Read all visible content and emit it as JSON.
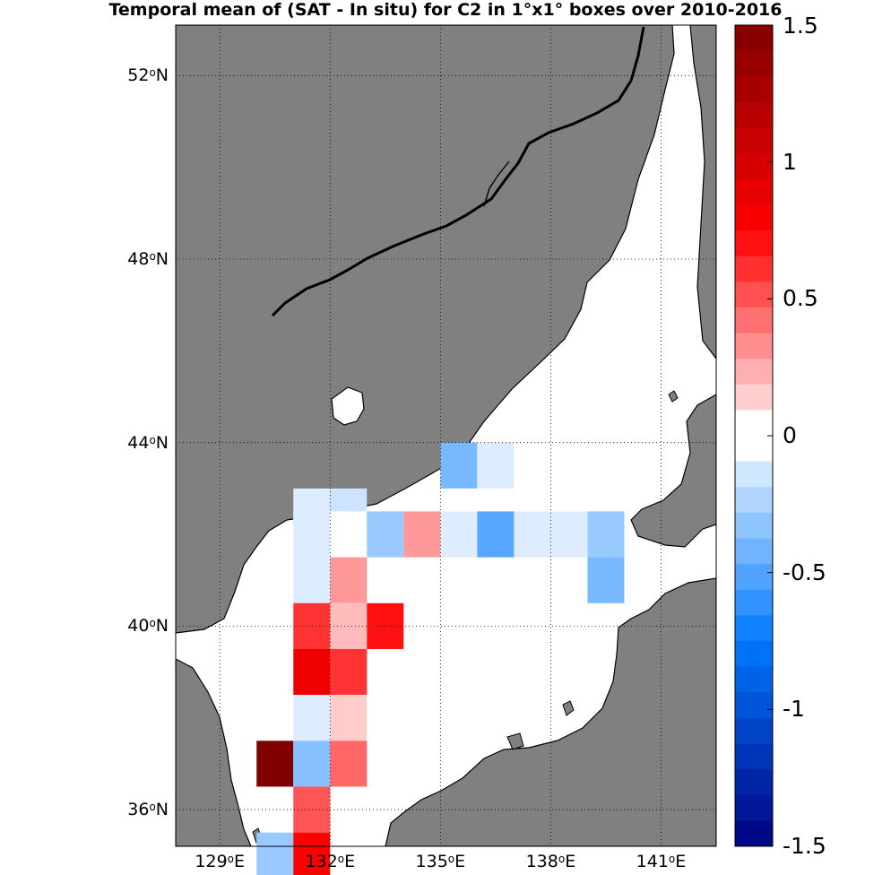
{
  "title": "Temporal mean of (SAT - In situ) for C2 in 1°x1° boxes over 2010-2016",
  "colors": {
    "land": "#808080",
    "sea": "#ffffff",
    "coastline": "#000000"
  },
  "map": {
    "lon_range": [
      127.8,
      142.5
    ],
    "lat_range": [
      35.2,
      53.1
    ],
    "lon_ticks": [
      {
        "value": 129,
        "deg": "129",
        "suffix": "E"
      },
      {
        "value": 132,
        "deg": "132",
        "suffix": "E"
      },
      {
        "value": 135,
        "deg": "135",
        "suffix": "E"
      },
      {
        "value": 138,
        "deg": "138",
        "suffix": "E"
      },
      {
        "value": 141,
        "deg": "141",
        "suffix": "E"
      }
    ],
    "lat_ticks": [
      {
        "value": 36,
        "deg": "36",
        "suffix": "N"
      },
      {
        "value": 40,
        "deg": "40",
        "suffix": "N"
      },
      {
        "value": 44,
        "deg": "44",
        "suffix": "N"
      },
      {
        "value": 48,
        "deg": "48",
        "suffix": "N"
      },
      {
        "value": 52,
        "deg": "52",
        "suffix": "N"
      }
    ],
    "grid": "dotted"
  },
  "chart_data": {
    "type": "heatmap",
    "box_size_deg": 1,
    "colorbar": {
      "range": [
        -1.5,
        1.5
      ],
      "ticks": [
        "1.5",
        "1",
        "0.5",
        "0",
        "-0.5",
        "-1",
        "-1.5"
      ],
      "tick_values": [
        1.5,
        1,
        0.5,
        0,
        -0.5,
        -1,
        -1.5
      ]
    },
    "cells": [
      {
        "lon": 131,
        "lat": 42.5,
        "value": -0.1
      },
      {
        "lon": 132,
        "lat": 42.5,
        "value": -0.15
      },
      {
        "lon": 135,
        "lat": 43.5,
        "value": -0.4
      },
      {
        "lon": 136,
        "lat": 43.5,
        "value": -0.1
      },
      {
        "lon": 131,
        "lat": 42,
        "value": -0.1
      },
      {
        "lon": 132,
        "lat": 42,
        "value": 0.0
      },
      {
        "lon": 133,
        "lat": 42,
        "value": -0.3
      },
      {
        "lon": 134,
        "lat": 42,
        "value": 0.3
      },
      {
        "lon": 135,
        "lat": 42,
        "value": -0.1
      },
      {
        "lon": 136,
        "lat": 42,
        "value": -0.5
      },
      {
        "lon": 137,
        "lat": 42,
        "value": -0.1
      },
      {
        "lon": 138,
        "lat": 42,
        "value": -0.1
      },
      {
        "lon": 139,
        "lat": 42,
        "value": -0.3
      },
      {
        "lon": 131,
        "lat": 41,
        "value": -0.1
      },
      {
        "lon": 132,
        "lat": 41,
        "value": 0.3
      },
      {
        "lon": 139,
        "lat": 41,
        "value": -0.4
      },
      {
        "lon": 131,
        "lat": 40,
        "value": 0.6
      },
      {
        "lon": 132,
        "lat": 40,
        "value": 0.2
      },
      {
        "lon": 133,
        "lat": 40,
        "value": 0.7
      },
      {
        "lon": 131,
        "lat": 39,
        "value": 0.85
      },
      {
        "lon": 132,
        "lat": 39,
        "value": 0.6
      },
      {
        "lon": 131,
        "lat": 38,
        "value": -0.1
      },
      {
        "lon": 132,
        "lat": 38,
        "value": 0.15
      },
      {
        "lon": 130,
        "lat": 37,
        "value": 1.5
      },
      {
        "lon": 131,
        "lat": 37,
        "value": -0.35
      },
      {
        "lon": 132,
        "lat": 37,
        "value": 0.45
      },
      {
        "lon": 131,
        "lat": 36,
        "value": 0.5
      },
      {
        "lon": 130,
        "lat": 35,
        "value": -0.3
      },
      {
        "lon": 131,
        "lat": 35,
        "value": 0.75
      }
    ]
  }
}
